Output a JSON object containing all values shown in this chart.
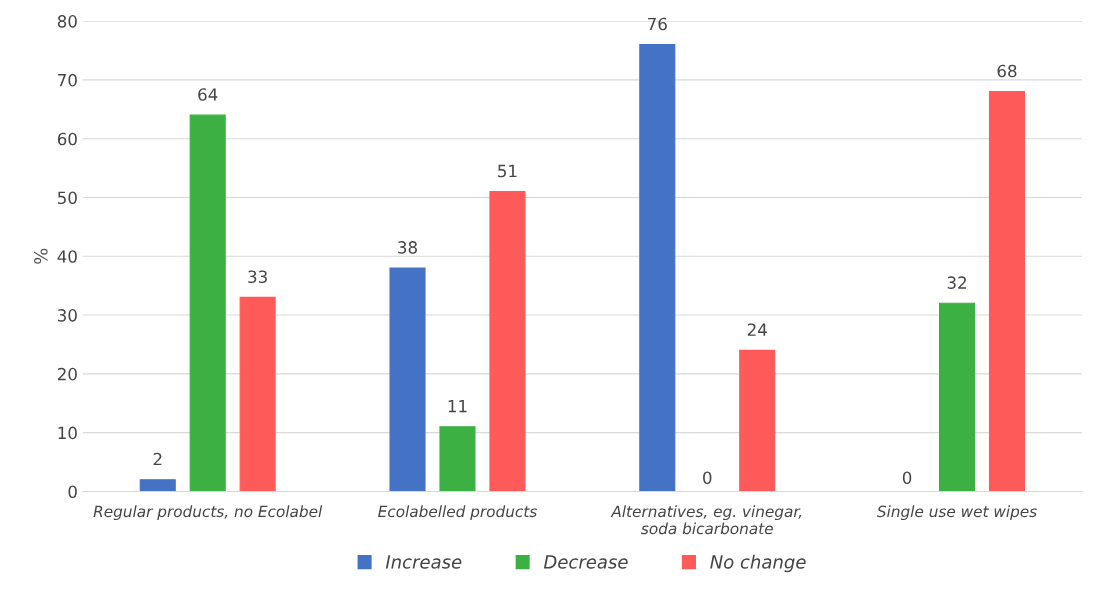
{
  "chart_data": {
    "type": "bar",
    "ylabel": "%",
    "categories": [
      "Regular products, no Ecolabel",
      "Ecolabelled products",
      "Alternatives, eg. vinegar,\nsoda bicarbonate",
      "Single use wet wipes"
    ],
    "series": [
      {
        "name": "Increase",
        "color": "#4472c4",
        "values": [
          2,
          38,
          76,
          0
        ]
      },
      {
        "name": "Decrease",
        "color": "#3cb043",
        "values": [
          64,
          11,
          0,
          32
        ]
      },
      {
        "name": "No change",
        "color": "#ff5a5a",
        "values": [
          33,
          51,
          24,
          68
        ]
      }
    ],
    "ylim": [
      0,
      80
    ],
    "yticks": [
      0,
      10,
      20,
      30,
      40,
      50,
      60,
      70,
      80
    ],
    "grid": "y",
    "legend": "bottom",
    "data_labels": true
  }
}
